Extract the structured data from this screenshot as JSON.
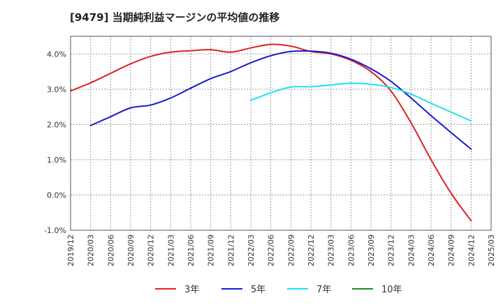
{
  "chart_data": {
    "type": "line",
    "title": "[9479]  当期純利益マージンの平均値の推移",
    "xlabel": "",
    "ylabel": "",
    "ylim": [
      -1.0,
      4.5
    ],
    "yticks": [
      "-1.0%",
      "0.0%",
      "1.0%",
      "2.0%",
      "3.0%",
      "4.0%"
    ],
    "ytick_values": [
      -1.0,
      0.0,
      1.0,
      2.0,
      3.0,
      4.0
    ],
    "xticks": [
      "2019/12",
      "2020/03",
      "2020/06",
      "2020/09",
      "2020/12",
      "2021/03",
      "2021/06",
      "2021/09",
      "2021/12",
      "2022/03",
      "2022/06",
      "2022/09",
      "2022/12",
      "2023/03",
      "2023/06",
      "2023/09",
      "2023/12",
      "2024/03",
      "2024/06",
      "2024/09",
      "2024/12",
      "2025/03"
    ],
    "grid": true,
    "legend_position": "bottom",
    "series": [
      {
        "name": "3年",
        "color": "#dd2222",
        "x": [
          0,
          1,
          2,
          3,
          4,
          5,
          6,
          7,
          8,
          9,
          10,
          11,
          12,
          13,
          14,
          15,
          16,
          17,
          18,
          19,
          20
        ],
        "values": [
          2.95,
          3.18,
          3.45,
          3.72,
          3.93,
          4.05,
          4.09,
          4.12,
          4.05,
          4.17,
          4.27,
          4.22,
          4.07,
          4.0,
          3.82,
          3.5,
          2.95,
          2.05,
          1.0,
          0.05,
          -0.73
        ]
      },
      {
        "name": "5年",
        "color": "#1a1acc",
        "x": [
          1,
          2,
          3,
          4,
          5,
          6,
          7,
          8,
          9,
          10,
          11,
          12,
          13,
          14,
          15,
          16,
          17,
          18,
          19,
          20
        ],
        "values": [
          1.97,
          2.22,
          2.47,
          2.55,
          2.75,
          3.03,
          3.3,
          3.5,
          3.75,
          3.95,
          4.07,
          4.08,
          4.02,
          3.85,
          3.58,
          3.22,
          2.75,
          2.25,
          1.77,
          1.3
        ]
      },
      {
        "name": "7年",
        "color": "#22e0ee",
        "x": [
          9,
          10,
          11,
          12,
          13,
          14,
          15,
          16,
          17,
          18,
          19,
          20
        ],
        "values": [
          2.68,
          2.9,
          3.06,
          3.07,
          3.12,
          3.17,
          3.14,
          3.05,
          2.86,
          2.6,
          2.35,
          2.1
        ]
      },
      {
        "name": "10年",
        "color": "#228822",
        "x": [],
        "values": []
      }
    ]
  }
}
